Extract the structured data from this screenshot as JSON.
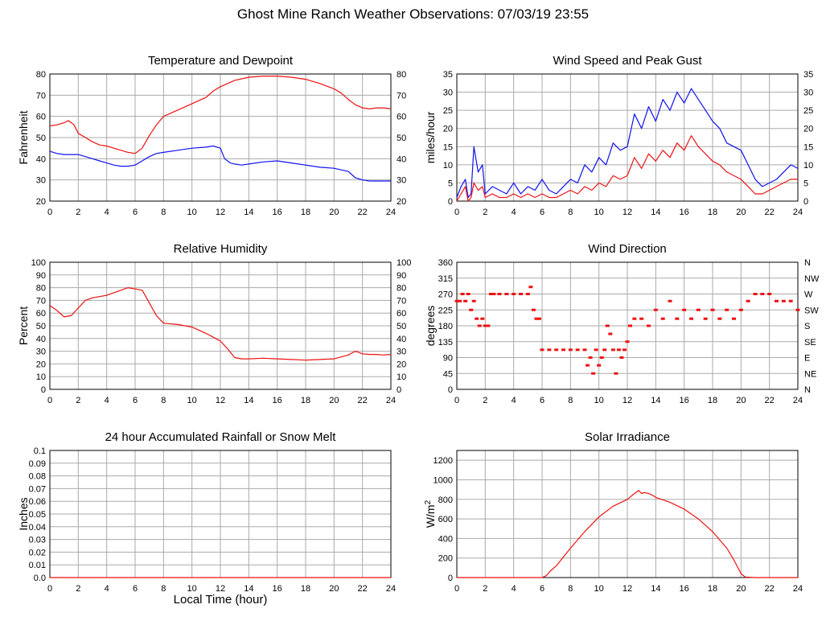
{
  "page": {
    "title": "Ghost Mine Ranch Weather Observations: 07/03/19 23:55",
    "xlabel": "Local Time (hour)"
  },
  "colors": {
    "red": "#ee1111",
    "blue": "#1111ee",
    "grid": "#aaaaaa"
  },
  "chart_data": [
    {
      "id": "temp",
      "type": "line",
      "title": "Temperature and Dewpoint",
      "ylabel": "Fahrenheit",
      "xlim": [
        0,
        24
      ],
      "ylim": [
        20,
        80
      ],
      "xticks": [
        0,
        2,
        4,
        6,
        8,
        10,
        12,
        14,
        16,
        18,
        20,
        22,
        24
      ],
      "yticks": [
        20,
        30,
        40,
        50,
        60,
        70,
        80
      ],
      "grid": true,
      "right_axis": true,
      "series": [
        {
          "color": "#ee1111",
          "x": [
            0,
            0.5,
            1,
            1.3,
            1.7,
            2,
            2.5,
            3,
            3.5,
            4,
            4.5,
            5,
            5.5,
            6,
            6.5,
            7,
            7.5,
            8,
            9,
            10,
            11,
            11.5,
            12,
            13,
            14,
            15,
            16,
            17,
            18,
            19,
            20,
            20.5,
            21,
            21.5,
            22,
            22.5,
            23,
            23.5,
            24
          ],
          "y": [
            55.5,
            56,
            57,
            58,
            56,
            52,
            50,
            48,
            46.5,
            46,
            45,
            44,
            43,
            42.5,
            45,
            51,
            56,
            60,
            63,
            66,
            69,
            72,
            74,
            77,
            78.5,
            79,
            79,
            78.5,
            77.5,
            75.5,
            73,
            71,
            68,
            65.5,
            64,
            63.5,
            64,
            64,
            63.5
          ]
        },
        {
          "color": "#1111ee",
          "x": [
            0,
            0.5,
            1,
            1.5,
            2,
            2.5,
            3,
            3.5,
            4,
            4.5,
            5,
            5.5,
            6,
            6.5,
            7,
            7.5,
            8,
            9,
            10,
            11,
            11.5,
            12,
            12.3,
            12.7,
            13,
            13.5,
            14,
            15,
            16,
            17,
            18,
            19,
            20,
            21,
            21.5,
            22,
            22.5,
            23,
            23.5,
            24
          ],
          "y": [
            43.5,
            42.5,
            42,
            42,
            42,
            41,
            40,
            39,
            38,
            37,
            36.5,
            36.5,
            37,
            39,
            41,
            42.5,
            43,
            44,
            45,
            45.5,
            46,
            45,
            40,
            38,
            37.5,
            37,
            37.5,
            38.5,
            39,
            38,
            37,
            36,
            35.5,
            34,
            31,
            30,
            29.5,
            29.5,
            29.5,
            29.5
          ]
        }
      ]
    },
    {
      "id": "wind",
      "type": "line",
      "title": "Wind Speed and Peak Gust",
      "ylabel": "miles/hour",
      "xlim": [
        0,
        24
      ],
      "ylim": [
        0,
        35
      ],
      "xticks": [
        0,
        2,
        4,
        6,
        8,
        10,
        12,
        14,
        16,
        18,
        20,
        22,
        24
      ],
      "yticks": [
        0,
        5,
        10,
        15,
        20,
        25,
        30,
        35
      ],
      "grid": true,
      "right_axis": true,
      "series": [
        {
          "color": "#1111ee",
          "x": [
            0,
            0.3,
            0.6,
            0.8,
            1,
            1.2,
            1.5,
            1.8,
            2,
            2.5,
            3,
            3.5,
            4,
            4.5,
            5,
            5.5,
            6,
            6.5,
            7,
            7.5,
            8,
            8.5,
            9,
            9.5,
            10,
            10.5,
            11,
            11.5,
            12,
            12.5,
            13,
            13.5,
            14,
            14.5,
            15,
            15.5,
            16,
            16.5,
            17,
            17.5,
            18,
            18.5,
            19,
            19.5,
            20,
            20.5,
            21,
            21.5,
            22,
            22.5,
            23,
            23.5,
            24
          ],
          "y": [
            1,
            4,
            6,
            1,
            2,
            15,
            8,
            10,
            2,
            4,
            3,
            2,
            5,
            2,
            4,
            3,
            6,
            3,
            2,
            4,
            6,
            5,
            10,
            8,
            12,
            10,
            16,
            14,
            15,
            24,
            20,
            26,
            22,
            28,
            25,
            30,
            27,
            31,
            28,
            25,
            22,
            20,
            16,
            15,
            14,
            10,
            6,
            4,
            5,
            6,
            8,
            10,
            9
          ]
        },
        {
          "color": "#ee1111",
          "x": [
            0,
            0.3,
            0.6,
            0.8,
            1,
            1.2,
            1.5,
            1.8,
            2,
            2.5,
            3,
            3.5,
            4,
            4.5,
            5,
            5.5,
            6,
            6.5,
            7,
            7.5,
            8,
            8.5,
            9,
            9.5,
            10,
            10.5,
            11,
            11.5,
            12,
            12.5,
            13,
            13.5,
            14,
            14.5,
            15,
            15.5,
            16,
            16.5,
            17,
            17.5,
            18,
            18.5,
            19,
            19.5,
            20,
            20.5,
            21,
            21.5,
            22,
            22.5,
            23,
            23.5,
            24
          ],
          "y": [
            0,
            2,
            4,
            0,
            1,
            5,
            3,
            4,
            1,
            2,
            1,
            1,
            2,
            1,
            2,
            1,
            2,
            1,
            1,
            2,
            3,
            2,
            4,
            3,
            5,
            4,
            7,
            6,
            7,
            12,
            9,
            13,
            11,
            14,
            12,
            16,
            14,
            18,
            15,
            13,
            11,
            10,
            8,
            7,
            6,
            4,
            2,
            2,
            3,
            4,
            5,
            6,
            6
          ]
        }
      ]
    },
    {
      "id": "rh",
      "type": "line",
      "title": "Relative Humidity",
      "ylabel": "Percent",
      "xlim": [
        0,
        24
      ],
      "ylim": [
        0,
        100
      ],
      "xticks": [
        0,
        2,
        4,
        6,
        8,
        10,
        12,
        14,
        16,
        18,
        20,
        22,
        24
      ],
      "yticks": [
        0,
        10,
        20,
        30,
        40,
        50,
        60,
        70,
        80,
        90,
        100
      ],
      "grid": true,
      "right_axis": true,
      "series": [
        {
          "color": "#ee1111",
          "x": [
            0,
            0.5,
            1,
            1.5,
            2,
            2.5,
            3,
            3.5,
            4,
            4.5,
            5,
            5.5,
            6,
            6.5,
            7,
            7.5,
            8,
            9,
            10,
            11,
            11.5,
            12,
            12.5,
            13,
            13.5,
            14,
            15,
            16,
            17,
            18,
            19,
            20,
            21,
            21.5,
            22,
            22.5,
            23,
            23.5,
            24
          ],
          "y": [
            66,
            62,
            57,
            58,
            64,
            70,
            72,
            73,
            74,
            76,
            78,
            80,
            79,
            78,
            68,
            58,
            52,
            51,
            49,
            44,
            41,
            38,
            32,
            25,
            24,
            24,
            24.5,
            24,
            23.5,
            23,
            23.5,
            24,
            27,
            30,
            28,
            27.5,
            27.5,
            27,
            27.5
          ]
        }
      ]
    },
    {
      "id": "dir",
      "type": "scatter",
      "title": "Wind Direction",
      "ylabel": "degrees",
      "xlim": [
        0,
        24
      ],
      "ylim": [
        0,
        360
      ],
      "xticks": [
        0,
        2,
        4,
        6,
        8,
        10,
        12,
        14,
        16,
        18,
        20,
        22,
        24
      ],
      "yticks": [
        0,
        45,
        90,
        135,
        180,
        225,
        270,
        315,
        360
      ],
      "right_labels": [
        "N",
        "NE",
        "E",
        "SE",
        "S",
        "SW",
        "W",
        "NW",
        "N"
      ],
      "grid": true,
      "series": [
        {
          "color": "#ee1111",
          "x": [
            0,
            0.2,
            0.4,
            0.6,
            0.8,
            1,
            1.2,
            1.4,
            1.6,
            1.8,
            2,
            2.2,
            2.4,
            2.6,
            3,
            3.5,
            4,
            4.5,
            5,
            5.2,
            5.4,
            5.6,
            5.8,
            6,
            6.5,
            7,
            7.5,
            8,
            8.5,
            9,
            9.2,
            9.4,
            9.6,
            9.8,
            10,
            10.2,
            10.4,
            10.6,
            10.8,
            11,
            11.2,
            11.4,
            11.6,
            11.8,
            12,
            12.2,
            12.5,
            13,
            13.5,
            14,
            14.5,
            15,
            15.5,
            16,
            16.5,
            17,
            17.5,
            18,
            18.5,
            19,
            19.5,
            20,
            20.5,
            21,
            21.5,
            22,
            22.5,
            23,
            23.5,
            24
          ],
          "y": [
            250,
            250,
            270,
            250,
            270,
            225,
            250,
            200,
            180,
            200,
            180,
            180,
            270,
            270,
            270,
            270,
            270,
            270,
            270,
            290,
            225,
            200,
            200,
            112,
            112,
            112,
            112,
            112,
            112,
            112,
            68,
            90,
            45,
            112,
            68,
            90,
            112,
            180,
            157,
            112,
            45,
            112,
            90,
            112,
            135,
            180,
            200,
            200,
            180,
            225,
            200,
            250,
            200,
            225,
            200,
            225,
            200,
            225,
            200,
            225,
            200,
            225,
            250,
            270,
            270,
            270,
            250,
            250,
            250,
            225
          ]
        }
      ]
    },
    {
      "id": "rain",
      "type": "line",
      "title": "24 hour Accumulated Rainfall or Snow Melt",
      "ylabel": "Inches",
      "xlim": [
        0,
        24
      ],
      "ylim": [
        0,
        0.1
      ],
      "xticks": [
        0,
        2,
        4,
        6,
        8,
        10,
        12,
        14,
        16,
        18,
        20,
        22,
        24
      ],
      "yticks": [
        0,
        0.01,
        0.02,
        0.03,
        0.04,
        0.05,
        0.06,
        0.07,
        0.08,
        0.09,
        0.1
      ],
      "ytick_labels": [
        "0.0",
        "0.01",
        "0.02",
        "0.03",
        "0.04",
        "0.05",
        "0.06",
        "0.07",
        "0.08",
        "0.09",
        "0.1"
      ],
      "grid": true,
      "series": [
        {
          "color": "#ee1111",
          "x": [
            0,
            24
          ],
          "y": [
            0,
            0
          ]
        }
      ]
    },
    {
      "id": "solar",
      "type": "line",
      "title": "Solar Irradiance",
      "ylabel": "W/m",
      "ylabel_sup": "2",
      "xlim": [
        0,
        24
      ],
      "ylim": [
        0,
        1300
      ],
      "xticks": [
        0,
        2,
        4,
        6,
        8,
        10,
        12,
        14,
        16,
        18,
        20,
        22,
        24
      ],
      "yticks": [
        0,
        200,
        400,
        600,
        800,
        1000,
        1200
      ],
      "grid": true,
      "series": [
        {
          "color": "#ee1111",
          "x": [
            0,
            6,
            6.3,
            6.6,
            7,
            8,
            9,
            10,
            11,
            12,
            12.5,
            12.8,
            13,
            13.2,
            13.5,
            13.8,
            14,
            15,
            16,
            17,
            18,
            19,
            19.5,
            20,
            20.3,
            21,
            24
          ],
          "y": [
            0,
            0,
            20,
            70,
            120,
            300,
            470,
            620,
            730,
            800,
            860,
            890,
            860,
            870,
            860,
            840,
            820,
            770,
            700,
            600,
            470,
            300,
            180,
            40,
            5,
            0,
            0
          ]
        }
      ]
    }
  ]
}
